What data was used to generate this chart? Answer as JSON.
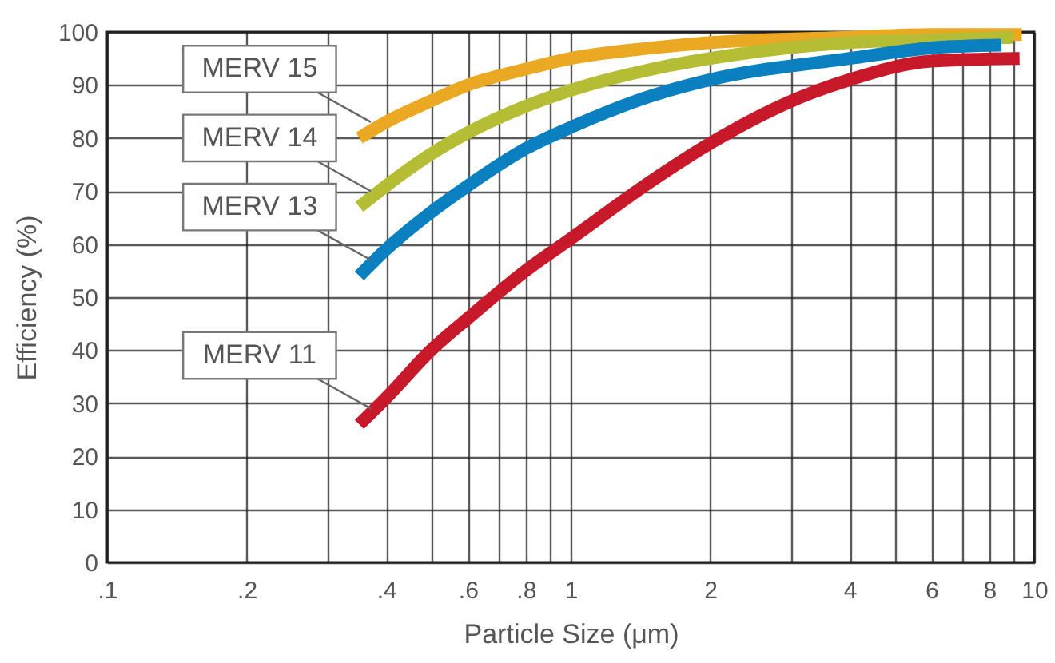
{
  "chart_data": {
    "type": "line",
    "xlabel": "Particle Size (μm)",
    "ylabel": "Efficiency (%)",
    "log": "x",
    "grid": true,
    "marker": "none",
    "line_style": "solid",
    "xlim": [
      0.1,
      10
    ],
    "ylim": [
      0,
      100
    ],
    "xticks": [
      {
        "value": 0.1,
        "label": ".1"
      },
      {
        "value": 0.2,
        "label": ".2"
      },
      {
        "value": 0.3,
        "label": null
      },
      {
        "value": 0.4,
        "label": ".4"
      },
      {
        "value": 0.5,
        "label": null
      },
      {
        "value": 0.6,
        "label": ".6"
      },
      {
        "value": 0.7,
        "label": null
      },
      {
        "value": 0.8,
        "label": ".8"
      },
      {
        "value": 0.9,
        "label": null
      },
      1,
      2,
      {
        "value": 3,
        "label": null
      },
      4,
      {
        "value": 5,
        "label": null
      },
      6,
      {
        "value": 7,
        "label": null
      },
      8,
      {
        "value": 9,
        "label": null
      },
      10
    ],
    "yticks": [
      0,
      10,
      20,
      30,
      40,
      50,
      60,
      70,
      80,
      90,
      100
    ],
    "series": [
      {
        "name": "MERV 15",
        "color": "#eaa823",
        "x": [
          0.35,
          0.4,
          0.5,
          0.6,
          0.8,
          1,
          1.5,
          2,
          4,
          6,
          9.4
        ],
        "values": [
          80,
          83,
          87,
          90,
          93,
          95,
          97,
          98,
          99,
          99.5,
          99.5
        ]
      },
      {
        "name": "MERV 14",
        "color": "#b5bd35",
        "x": [
          0.35,
          0.4,
          0.5,
          0.6,
          0.8,
          1,
          1.5,
          2,
          4,
          6,
          9
        ],
        "values": [
          67,
          71,
          77,
          81,
          86,
          89,
          93,
          95,
          98,
          98.5,
          99
        ]
      },
      {
        "name": "MERV 13",
        "color": "#0a80c0",
        "x": [
          0.35,
          0.4,
          0.5,
          0.6,
          0.8,
          1,
          1.5,
          2,
          4,
          6,
          8.5
        ],
        "values": [
          54,
          59,
          66,
          71,
          78,
          82,
          88,
          91,
          95,
          97,
          97.5
        ]
      },
      {
        "name": "MERV 11",
        "color": "#c8192b",
        "x": [
          0.35,
          0.4,
          0.5,
          0.6,
          0.8,
          1,
          1.5,
          2,
          3,
          4,
          6,
          9.3
        ],
        "values": [
          26,
          31,
          40,
          46,
          55,
          61,
          72,
          79,
          87,
          91,
          94.5,
          95
        ]
      }
    ]
  }
}
